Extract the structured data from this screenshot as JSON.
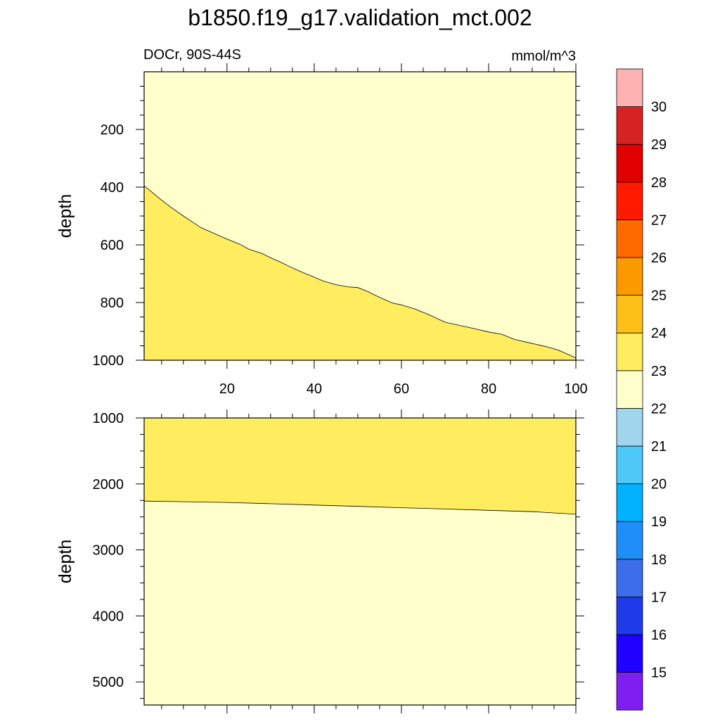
{
  "chart_data": {
    "type": "contour_section",
    "title": "b1850.f19_g17.validation_mct.002",
    "subtitle_left": "DOCr, 90S-44S",
    "subtitle_right": "mmol/m^3",
    "panels": [
      {
        "id": "upper",
        "ylabel": "depth",
        "xlim": [
          1,
          100
        ],
        "ylim": [
          1000,
          0
        ],
        "y_reversed": true,
        "x_ticks": [
          20,
          40,
          60,
          80,
          100
        ],
        "x_tick_labels": [
          "20",
          "40",
          "60",
          "80",
          "100"
        ],
        "y_ticks": [
          200,
          400,
          600,
          800,
          1000
        ],
        "y_tick_labels": [
          "200",
          "400",
          "600",
          "800",
          "1000"
        ],
        "background_level": "22-23",
        "filled_region": {
          "level": "23-24",
          "below_boundary": true,
          "boundary": {
            "x": [
              1,
              3,
              5,
              7,
              10,
              12,
              14,
              17,
              20,
              23,
              25,
              28,
              30,
              32,
              35,
              38,
              40,
              42,
              45,
              48,
              50,
              52,
              55,
              58,
              60,
              63,
              66,
              70,
              73,
              76,
              80,
              83,
              86,
              90,
              93,
              96,
              99,
              100
            ],
            "y": [
              395,
              420,
              445,
              468,
              500,
              520,
              540,
              560,
              580,
              598,
              615,
              630,
              645,
              658,
              680,
              700,
              712,
              725,
              738,
              746,
              748,
              760,
              782,
              802,
              808,
              822,
              840,
              868,
              878,
              888,
              902,
              910,
              928,
              942,
              952,
              965,
              985,
              992
            ]
          }
        }
      },
      {
        "id": "lower",
        "ylabel": "depth",
        "xlim": [
          1,
          100
        ],
        "ylim": [
          5350,
          1000
        ],
        "y_reversed": true,
        "y_ticks": [
          1000,
          2000,
          3000,
          4000,
          5000
        ],
        "y_tick_labels": [
          "1000",
          "2000",
          "3000",
          "4000",
          "5000"
        ],
        "x_ticks": [
          20,
          40,
          60,
          80,
          100
        ],
        "x_tick_labels": [],
        "background_level": "22-23",
        "filled_region": {
          "level": "23-24",
          "below_boundary": false,
          "boundary": {
            "x": [
              1,
              10,
              20,
              30,
              40,
              50,
              60,
              70,
              80,
              90,
              100
            ],
            "y": [
              2260,
              2270,
              2280,
              2300,
              2320,
              2340,
              2360,
              2380,
              2400,
              2420,
              2460
            ]
          }
        }
      }
    ],
    "colorbar": {
      "labels": [
        "15",
        "16",
        "17",
        "18",
        "19",
        "20",
        "21",
        "22",
        "23",
        "24",
        "25",
        "26",
        "27",
        "28",
        "29",
        "30"
      ],
      "colors_bottom_to_top": [
        "#7f1fef",
        "#2000ff",
        "#1f3be9",
        "#3b6ee8",
        "#1f8ef8",
        "#00b2ff",
        "#4dc8f7",
        "#9fd6ee",
        "#ffffcc",
        "#ffec5f",
        "#fcc018",
        "#fd9900",
        "#ff6a00",
        "#ff1a00",
        "#e00000",
        "#d62222",
        "#ffb2b2"
      ]
    }
  }
}
